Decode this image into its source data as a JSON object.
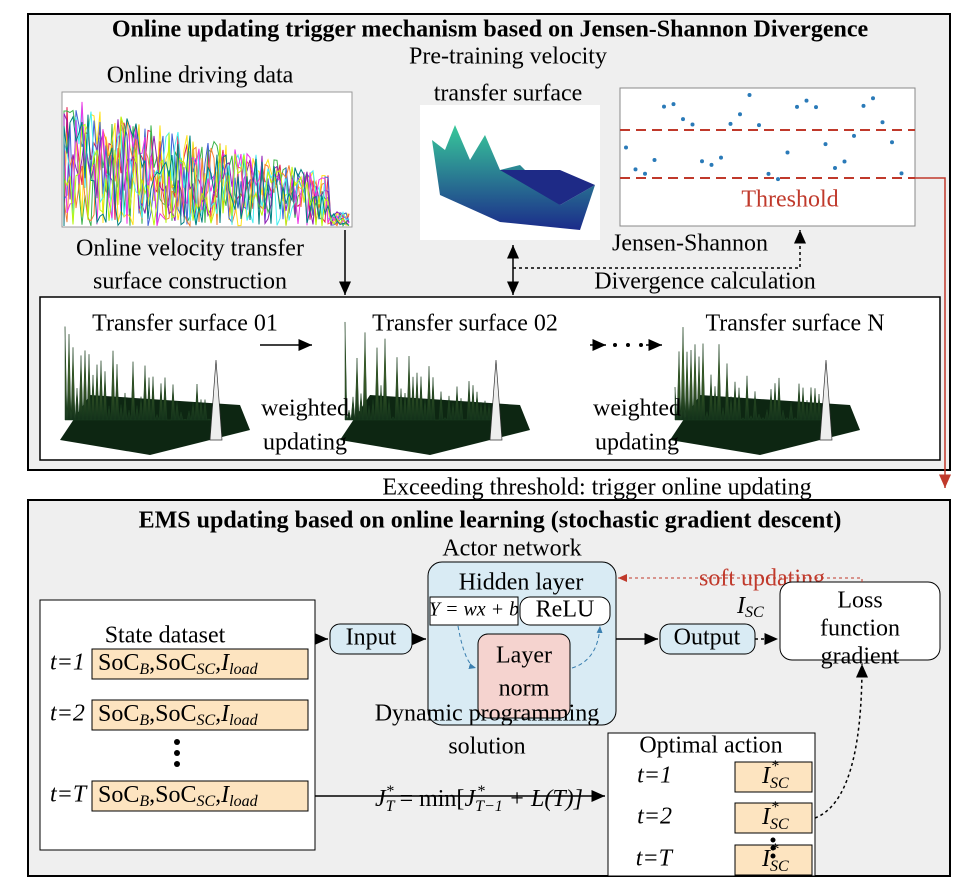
{
  "top_panel": {
    "title": "Online updating trigger mechanism based on Jensen-Shannon Divergence",
    "online_data": "Online driving data",
    "pretraining": [
      "Pre-training velocity",
      "transfer surface"
    ],
    "threshold": "Threshold",
    "construction": [
      "Online velocity transfer",
      "surface construction"
    ],
    "divergence": [
      "Jensen-Shannon",
      "Divergence calculation"
    ],
    "surfaces": [
      "Transfer surface 01",
      "Transfer surface 02",
      "Transfer surface N"
    ],
    "weighted_updating": [
      "weighted",
      "updating"
    ],
    "trigger": "Exceeding threshold: trigger online updating"
  },
  "bottom_panel": {
    "title": "EMS updating based on online learning (stochastic gradient descent)",
    "actor": "Actor network",
    "soft_updating": "soft updating",
    "hidden_layer": "Hidden layer",
    "linear": "Y = wx + b",
    "relu": "ReLU",
    "layer_norm": [
      "Layer",
      "norm"
    ],
    "input": "Input",
    "output": "Output",
    "output_symbol": [
      "I",
      "SC"
    ],
    "loss": [
      "Loss",
      "function",
      "gradient"
    ],
    "state_dataset": "State dataset",
    "state_rows": [
      {
        "t": "t=1",
        "cell": [
          "SoC",
          "B",
          ",SoC",
          "SC",
          ",I",
          "load"
        ]
      },
      {
        "t": "t=2",
        "cell": [
          "SoC",
          "B",
          ",SoC",
          "SC",
          ",I",
          "load"
        ]
      },
      {
        "t": "t=T",
        "cell": [
          "SoC",
          "B",
          ",SoC",
          "SC",
          ",I",
          "load"
        ]
      }
    ],
    "dp": [
      "Dynamic programming",
      "solution"
    ],
    "equation": [
      "J",
      "T",
      "*",
      " = min[",
      "J",
      "T−1",
      "*",
      " + L(T)]"
    ],
    "optimal_action": "Optimal action",
    "action_rows": [
      {
        "t": "t=1",
        "cell": [
          "I",
          "SC",
          "*"
        ]
      },
      {
        "t": "t=2",
        "cell": [
          "I",
          "SC",
          "*"
        ]
      },
      {
        "t": "t=T",
        "cell": [
          "I",
          "SC",
          "*"
        ]
      }
    ]
  }
}
